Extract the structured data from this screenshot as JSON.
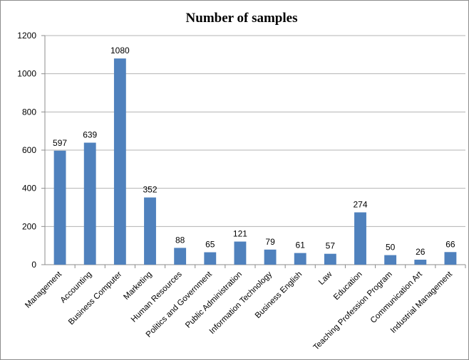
{
  "chart_data": {
    "type": "bar",
    "title": "Number of samples",
    "xlabel": "",
    "ylabel": "",
    "ylim": [
      0,
      1200
    ],
    "yticks": [
      0,
      200,
      400,
      600,
      800,
      1000,
      1200
    ],
    "grid": true,
    "legend": "none",
    "bar_color": "#4f81bd",
    "categories": [
      "Management",
      "Accounting",
      "Business Computer",
      "Marketing",
      "Human Resources",
      "Politics and Government",
      "Public Administration",
      "Information Technology",
      "Business English",
      "Law",
      "Education",
      "Teaching Profession Program",
      "Communication Art",
      "Industrial Management"
    ],
    "values": [
      597,
      639,
      1080,
      352,
      88,
      65,
      121,
      79,
      61,
      57,
      274,
      50,
      26,
      66
    ]
  }
}
